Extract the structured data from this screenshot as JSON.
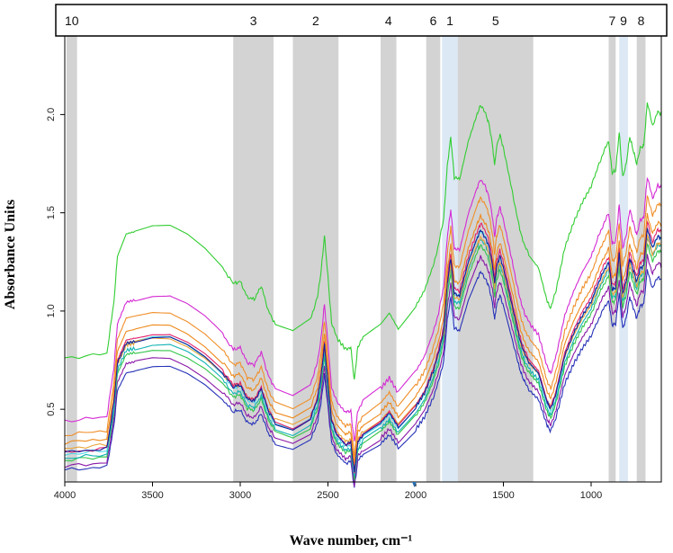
{
  "chart_data": {
    "type": "line",
    "xlabel": "Wave number, cm⁻¹",
    "ylabel": "Absorbance Units",
    "xlim": [
      4000,
      600
    ],
    "ylim": [
      0.13,
      2.4
    ],
    "x_reversed": true,
    "x_ticks": [
      4000,
      3500,
      3000,
      2500,
      2000,
      1500,
      1000
    ],
    "x_tick_labels": [
      "4000",
      "3500",
      "3000",
      "2500",
      "2000",
      "1500",
      "1000"
    ],
    "y_ticks": [
      0.5,
      1.0,
      1.5,
      2.0
    ],
    "y_tick_labels": [
      "0.5",
      "1.0",
      "1.5",
      "2.0"
    ],
    "grid": false,
    "legend": "none",
    "bands": [
      {
        "label": "10",
        "from": 3990,
        "to": 3930,
        "color": "#d3d3d3"
      },
      {
        "label": "3",
        "from": 3040,
        "to": 2810,
        "color": "#d3d3d3"
      },
      {
        "label": "2",
        "from": 2700,
        "to": 2440,
        "color": "#d3d3d3"
      },
      {
        "label": "4",
        "from": 2200,
        "to": 2110,
        "color": "#d3d3d3"
      },
      {
        "label": "6",
        "from": 1940,
        "to": 1860,
        "color": "#d3d3d3"
      },
      {
        "label": "1",
        "from": 1850,
        "to": 1760,
        "color": "#dce9f5"
      },
      {
        "label": "5",
        "from": 1760,
        "to": 1330,
        "color": "#d3d3d3"
      },
      {
        "label": "7",
        "from": 900,
        "to": 860,
        "color": "#d3d3d3"
      },
      {
        "label": "9",
        "from": 840,
        "to": 790,
        "color": "#dce9f5"
      },
      {
        "label": "8",
        "from": 740,
        "to": 690,
        "color": "#d3d3d3"
      }
    ],
    "template": {
      "x": [
        4000,
        3760,
        3720,
        3700,
        3650,
        3600,
        3500,
        3400,
        3300,
        3200,
        3100,
        3040,
        3000,
        2960,
        2920,
        2880,
        2840,
        2800,
        2700,
        2600,
        2560,
        2540,
        2520,
        2500,
        2480,
        2450,
        2400,
        2370,
        2350,
        2330,
        2300,
        2200,
        2150,
        2100,
        2000,
        1950,
        1900,
        1870,
        1840,
        1820,
        1800,
        1780,
        1750,
        1700,
        1650,
        1630,
        1600,
        1580,
        1560,
        1550,
        1540,
        1520,
        1500,
        1450,
        1420,
        1400,
        1380,
        1350,
        1300,
        1250,
        1230,
        1200,
        1150,
        1100,
        1050,
        1000,
        960,
        930,
        900,
        880,
        860,
        840,
        820,
        800,
        780,
        760,
        740,
        720,
        700,
        680,
        650,
        620,
        600
      ],
      "y": [
        0.0,
        0.02,
        0.25,
        0.45,
        0.55,
        0.56,
        0.58,
        0.58,
        0.54,
        0.48,
        0.4,
        0.33,
        0.34,
        0.27,
        0.26,
        0.32,
        0.21,
        0.15,
        0.12,
        0.17,
        0.27,
        0.38,
        0.54,
        0.36,
        0.16,
        0.09,
        0.04,
        0.05,
        -0.1,
        0.05,
        0.09,
        0.15,
        0.2,
        0.13,
        0.23,
        0.3,
        0.41,
        0.5,
        0.62,
        0.85,
        0.98,
        0.8,
        0.79,
        0.96,
        1.08,
        1.12,
        1.08,
        1.03,
        0.93,
        0.85,
        0.93,
        0.99,
        0.93,
        0.74,
        0.62,
        0.55,
        0.5,
        0.45,
        0.4,
        0.25,
        0.22,
        0.3,
        0.49,
        0.6,
        0.69,
        0.76,
        0.85,
        0.91,
        0.96,
        0.82,
        0.83,
        1.0,
        0.8,
        0.86,
        0.98,
        0.92,
        0.86,
        0.93,
        0.94,
        1.13,
        1.03,
        1.09,
        1.08
      ]
    },
    "series": [
      {
        "color": "#2632b8",
        "offset": 0.19,
        "scale": 0.9
      },
      {
        "color": "#8a18a8",
        "offset": 0.21,
        "scale": 0.95
      },
      {
        "color": "#33c44a",
        "offset": 0.24,
        "scale": 0.98
      },
      {
        "color": "#12b3b3",
        "offset": 0.25,
        "scale": 1.0
      },
      {
        "color": "#4dd8e8",
        "offset": 0.27,
        "scale": 1.02
      },
      {
        "color": "#e8a33a",
        "offset": 0.3,
        "scale": 0.96
      },
      {
        "color": "#e0206a",
        "offset": 0.28,
        "scale": 1.04
      },
      {
        "color": "#151f9c",
        "offset": 0.28,
        "scale": 1.01
      },
      {
        "color": "#ee8a1c",
        "offset": 0.33,
        "scale": 1.03
      },
      {
        "color": "#f08f2a",
        "offset": 0.37,
        "scale": 1.08
      },
      {
        "color": "#d42ad4",
        "offset": 0.44,
        "scale": 1.1
      },
      {
        "color": "#32cd32",
        "offset": 0.76,
        "scale": 1.15
      }
    ]
  }
}
